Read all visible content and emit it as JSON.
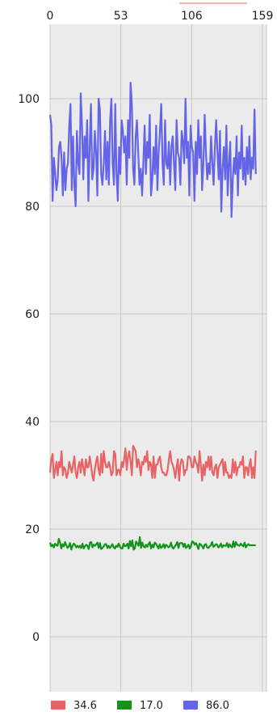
{
  "chart_data": {
    "type": "line",
    "x_ticks": [
      0,
      53,
      106,
      159
    ],
    "y_ticks": [
      0,
      20,
      40,
      60,
      80,
      100
    ],
    "xlim": [
      0,
      159
    ],
    "ylim": [
      -10,
      115
    ],
    "grid": true,
    "legend_position": "bottom",
    "series": [
      {
        "name": "34.6",
        "color": "#e86464",
        "values": [
          30.5,
          33.0,
          34.0,
          29.5,
          31.0,
          32.5,
          30.0,
          32.5,
          31.5,
          34.5,
          30.0,
          31.5,
          31.0,
          29.5,
          30.5,
          32.5,
          31.5,
          30.5,
          32.0,
          33.5,
          30.5,
          29.5,
          31.5,
          32.5,
          30.5,
          33.0,
          31.5,
          30.0,
          33.0,
          31.5,
          31.5,
          33.5,
          32.0,
          30.0,
          29.0,
          31.0,
          32.5,
          33.5,
          31.0,
          30.0,
          34.0,
          30.5,
          34.5,
          32.5,
          31.5,
          31.5,
          32.5,
          31.5,
          30.0,
          30.5,
          34.5,
          34.0,
          30.0,
          31.0,
          31.0,
          30.0,
          32.5,
          31.5,
          33.0,
          35.0,
          31.0,
          33.5,
          34.5,
          32.5,
          30.0,
          35.5,
          35.0,
          34.5,
          31.5,
          33.0,
          32.0,
          30.0,
          32.5,
          32.0,
          33.5,
          32.5,
          34.5,
          31.0,
          32.5,
          32.0,
          29.5,
          33.5,
          29.5,
          32.0,
          32.0,
          33.0,
          33.5,
          31.5,
          30.5,
          30.5,
          30.0,
          30.0,
          31.0,
          33.0,
          34.5,
          32.5,
          32.0,
          31.0,
          29.5,
          31.5,
          33.0,
          29.0,
          32.0,
          33.0,
          32.5,
          30.0,
          31.0,
          31.0,
          33.5,
          33.5,
          33.0,
          31.5,
          31.5,
          33.5,
          32.5,
          32.0,
          30.5,
          34.5,
          32.0,
          29.0,
          32.0,
          30.0,
          32.5,
          31.5,
          33.5,
          31.0,
          33.5,
          30.5,
          30.0,
          31.5,
          32.0,
          29.5,
          31.5,
          32.0,
          32.5,
          33.0,
          30.0,
          32.5,
          30.5,
          30.5,
          29.5,
          30.0,
          29.5,
          33.0,
          30.5,
          32.5,
          30.0,
          31.5,
          31.5,
          32.5,
          32.0,
          33.5,
          29.5,
          31.5,
          31.5,
          30.0,
          32.0,
          33.0,
          29.5,
          31.5,
          29.5,
          34.6
        ]
      },
      {
        "name": "17.0",
        "color": "#12941a",
        "values": [
          17.5,
          16.8,
          17.1,
          16.6,
          17.3,
          17.0,
          16.9,
          18.2,
          17.5,
          16.4,
          17.2,
          16.8,
          17.6,
          17.0,
          16.5,
          16.8,
          17.4,
          16.2,
          16.9,
          17.3,
          17.1,
          16.6,
          16.9,
          16.6,
          16.9,
          16.5,
          17.3,
          16.4,
          16.8,
          17.1,
          16.9,
          16.3,
          17.5,
          17.6,
          16.6,
          17.1,
          16.9,
          17.2,
          17.5,
          16.5,
          17.4,
          16.3,
          16.5,
          16.8,
          17.2,
          17.2,
          16.5,
          16.9,
          16.5,
          16.8,
          17.2,
          16.6,
          16.4,
          16.9,
          16.7,
          17.3,
          16.8,
          16.4,
          16.4,
          17.3,
          16.8,
          16.9,
          17.3,
          16.4,
          17.8,
          16.8,
          17.9,
          16.2,
          16.4,
          17.7,
          17.3,
          16.9,
          18.5,
          16.5,
          17.5,
          16.8,
          16.6,
          17.1,
          16.7,
          17.2,
          17.6,
          16.4,
          17.1,
          16.6,
          17.5,
          17.3,
          16.8,
          16.4,
          17.2,
          16.5,
          16.7,
          17.2,
          16.5,
          17.1,
          16.9,
          16.6,
          16.8,
          17.5,
          16.6,
          16.4,
          16.8,
          17.1,
          17.6,
          16.5,
          17.4,
          17.4,
          17.4,
          16.7,
          17.3,
          16.5,
          16.8,
          17.1,
          16.4,
          16.8,
          17.7,
          17.6,
          17.1,
          17.4,
          16.9,
          16.3,
          17.3,
          17.1,
          16.8,
          16.4,
          17.1,
          17.2,
          16.6,
          16.5,
          16.8,
          17.0,
          17.6,
          16.7,
          16.9,
          17.2,
          17.1,
          16.6,
          16.8,
          17.3,
          16.6,
          17.0,
          16.9,
          16.9,
          17.4,
          16.6,
          17.2,
          16.8,
          16.6,
          17.7,
          16.7,
          17.6,
          17.1,
          17.0,
          16.9,
          17.3,
          17.0,
          16.8,
          17.5,
          16.6,
          17.0,
          17.2,
          17.0,
          17.0,
          17.0,
          17.0,
          17.0,
          17.0
        ]
      },
      {
        "name": "86.0",
        "color": "#6464e8",
        "values": [
          97.0,
          95.0,
          81.0,
          89.0,
          86.0,
          83.0,
          85.0,
          91.0,
          92.0,
          89.0,
          82.0,
          90.0,
          83.0,
          87.0,
          88.0,
          95.0,
          99.0,
          83.0,
          93.0,
          84.0,
          80.0,
          94.0,
          88.0,
          86.0,
          101.0,
          95.0,
          85.0,
          93.0,
          89.0,
          96.0,
          81.0,
          91.0,
          99.0,
          85.0,
          87.0,
          94.0,
          90.0,
          82.0,
          100.0,
          98.0,
          86.0,
          84.0,
          88.0,
          94.0,
          85.0,
          92.0,
          84.0,
          96.0,
          100.0,
          88.0,
          84.0,
          99.0,
          86.0,
          81.0,
          91.0,
          86.0,
          96.0,
          94.0,
          90.0,
          93.0,
          84.0,
          96.0,
          89.0,
          103.0,
          99.0,
          87.0,
          84.0,
          93.0,
          96.0,
          90.0,
          84.0,
          87.0,
          82.0,
          88.0,
          95.0,
          86.0,
          92.0,
          89.0,
          97.0,
          82.0,
          85.0,
          91.0,
          86.0,
          95.0,
          83.0,
          90.0,
          94.0,
          99.0,
          88.0,
          84.0,
          96.0,
          88.0,
          87.0,
          92.0,
          84.0,
          91.0,
          93.0,
          88.0,
          83.0,
          96.0,
          90.0,
          89.0,
          84.0,
          94.0,
          92.0,
          88.0,
          100.0,
          89.0,
          92.0,
          82.0,
          95.0,
          91.0,
          90.0,
          81.0,
          92.0,
          86.0,
          96.0,
          89.0,
          93.0,
          83.0,
          88.0,
          97.0,
          90.0,
          85.0,
          88.0,
          86.0,
          93.0,
          88.0,
          84.0,
          91.0,
          96.0,
          90.0,
          85.0,
          94.0,
          79.0,
          87.0,
          91.0,
          85.0,
          95.0,
          82.0,
          88.0,
          92.0,
          78.0,
          85.0,
          89.0,
          86.0,
          93.0,
          82.0,
          90.0,
          87.0,
          95.0,
          85.0,
          89.0,
          84.0,
          91.0,
          86.0,
          93.0,
          85.0,
          89.0,
          87.0,
          98.0,
          86.0
        ]
      }
    ]
  }
}
